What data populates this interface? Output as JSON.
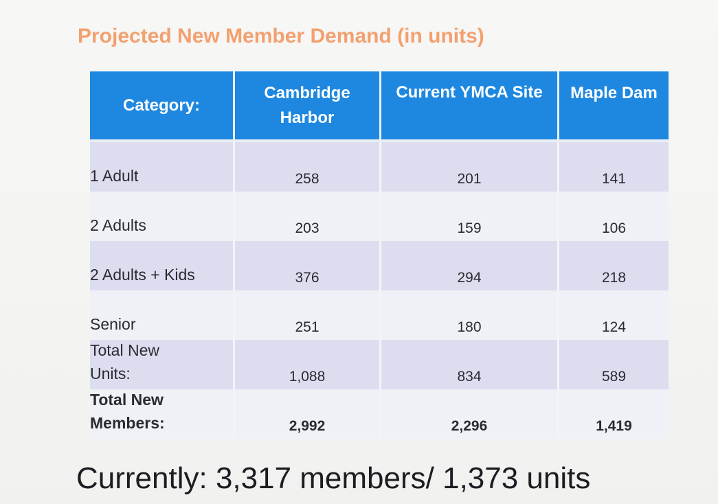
{
  "title": "Projected New Member Demand (in units)",
  "table": {
    "headers": [
      "Category:",
      "Cambridge Harbor",
      "Current YMCA Site",
      "Maple Dam"
    ],
    "header_lines": {
      "cambridge_line1": "Cambridge",
      "cambridge_line2": "Harbor"
    },
    "rows": [
      {
        "category": "1 Adult",
        "values": [
          "258",
          "201",
          "141"
        ]
      },
      {
        "category": "2 Adults",
        "values": [
          "203",
          "159",
          "106"
        ]
      },
      {
        "category": "2 Adults + Kids",
        "values": [
          "376",
          "294",
          "218"
        ]
      },
      {
        "category": "Senior",
        "values": [
          "251",
          "180",
          "124"
        ]
      },
      {
        "category_line1": "Total New",
        "category_line2": "Units:",
        "values": [
          "1,088",
          "834",
          "589"
        ]
      },
      {
        "category_line1": "Total New",
        "category_line2": "Members:",
        "values": [
          "2,992",
          "2,296",
          "1,419"
        ]
      }
    ]
  },
  "footer": "Currently: 3,317 members/ 1,373 units",
  "colors": {
    "title": "#f3a06f",
    "header_bg": "#1e88e0",
    "row_alt": "#dcdef0",
    "row_plain": "#eff1f6"
  }
}
